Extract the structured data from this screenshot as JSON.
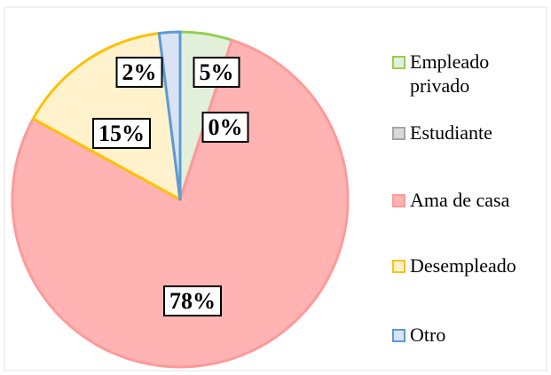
{
  "chart_data": {
    "type": "pie",
    "categories": [
      "Empleado privado",
      "Estudiante",
      "Ama de casa",
      "Desempleado",
      "Otro"
    ],
    "values": [
      5,
      0,
      78,
      15,
      2
    ],
    "value_labels": [
      "5%",
      "0%",
      "78%",
      "15%",
      "2%"
    ],
    "colors": [
      "#e2f0d9",
      "#d9d9d9",
      "#ffb3b3",
      "#fff2cc",
      "#dae3f3"
    ],
    "edge_colors": [
      "#92d050",
      "#a5a5a5",
      "#ff9999",
      "#ffc000",
      "#5b9bd5"
    ],
    "legend": "right"
  }
}
